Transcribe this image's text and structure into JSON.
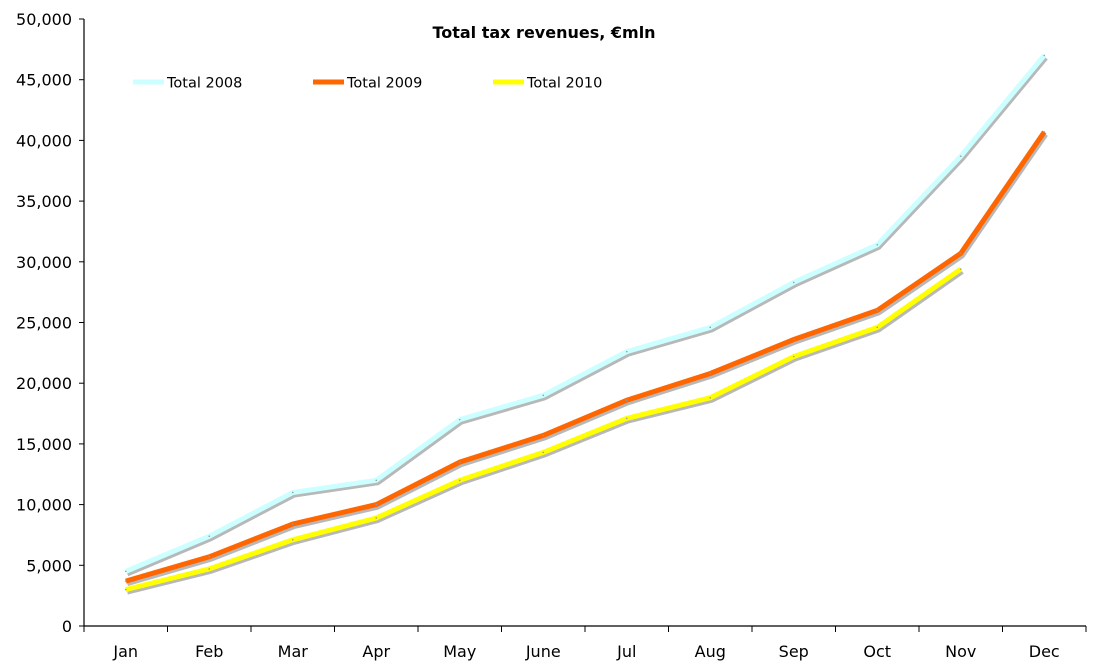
{
  "chart_data": {
    "type": "line",
    "title": "Total tax revenues, €mln",
    "xlabel": "",
    "ylabel": "",
    "categories": [
      "Jan",
      "Feb",
      "Mar",
      "Apr",
      "May",
      "June",
      "Jul",
      "Aug",
      "Sep",
      "Oct",
      "Nov",
      "Dec"
    ],
    "ylim": [
      0,
      50000
    ],
    "yticks": [
      0,
      5000,
      10000,
      15000,
      20000,
      25000,
      30000,
      35000,
      40000,
      45000,
      50000
    ],
    "ytick_labels": [
      "0",
      "5,000",
      "10,000",
      "15,000",
      "20,000",
      "25,000",
      "30,000",
      "35,000",
      "40,000",
      "45,000",
      "50,000"
    ],
    "grid": false,
    "legend_position": "top-left",
    "series": [
      {
        "name": "Total 2008",
        "color": "#ccffff",
        "values": [
          4500,
          7400,
          11000,
          12000,
          17000,
          19000,
          22600,
          24600,
          28300,
          31400,
          38700,
          47000
        ]
      },
      {
        "name": "Total 2009",
        "color": "#ff6600",
        "values": [
          3700,
          5700,
          8400,
          10000,
          13500,
          15700,
          18600,
          20800,
          23600,
          26000,
          30700,
          40700
        ]
      },
      {
        "name": "Total 2010",
        "color": "#ffff00",
        "values": [
          3000,
          4700,
          7100,
          8900,
          12000,
          14300,
          17100,
          18800,
          22200,
          24600,
          29400,
          null
        ]
      }
    ],
    "shadow_color": "#b8b8b8"
  }
}
